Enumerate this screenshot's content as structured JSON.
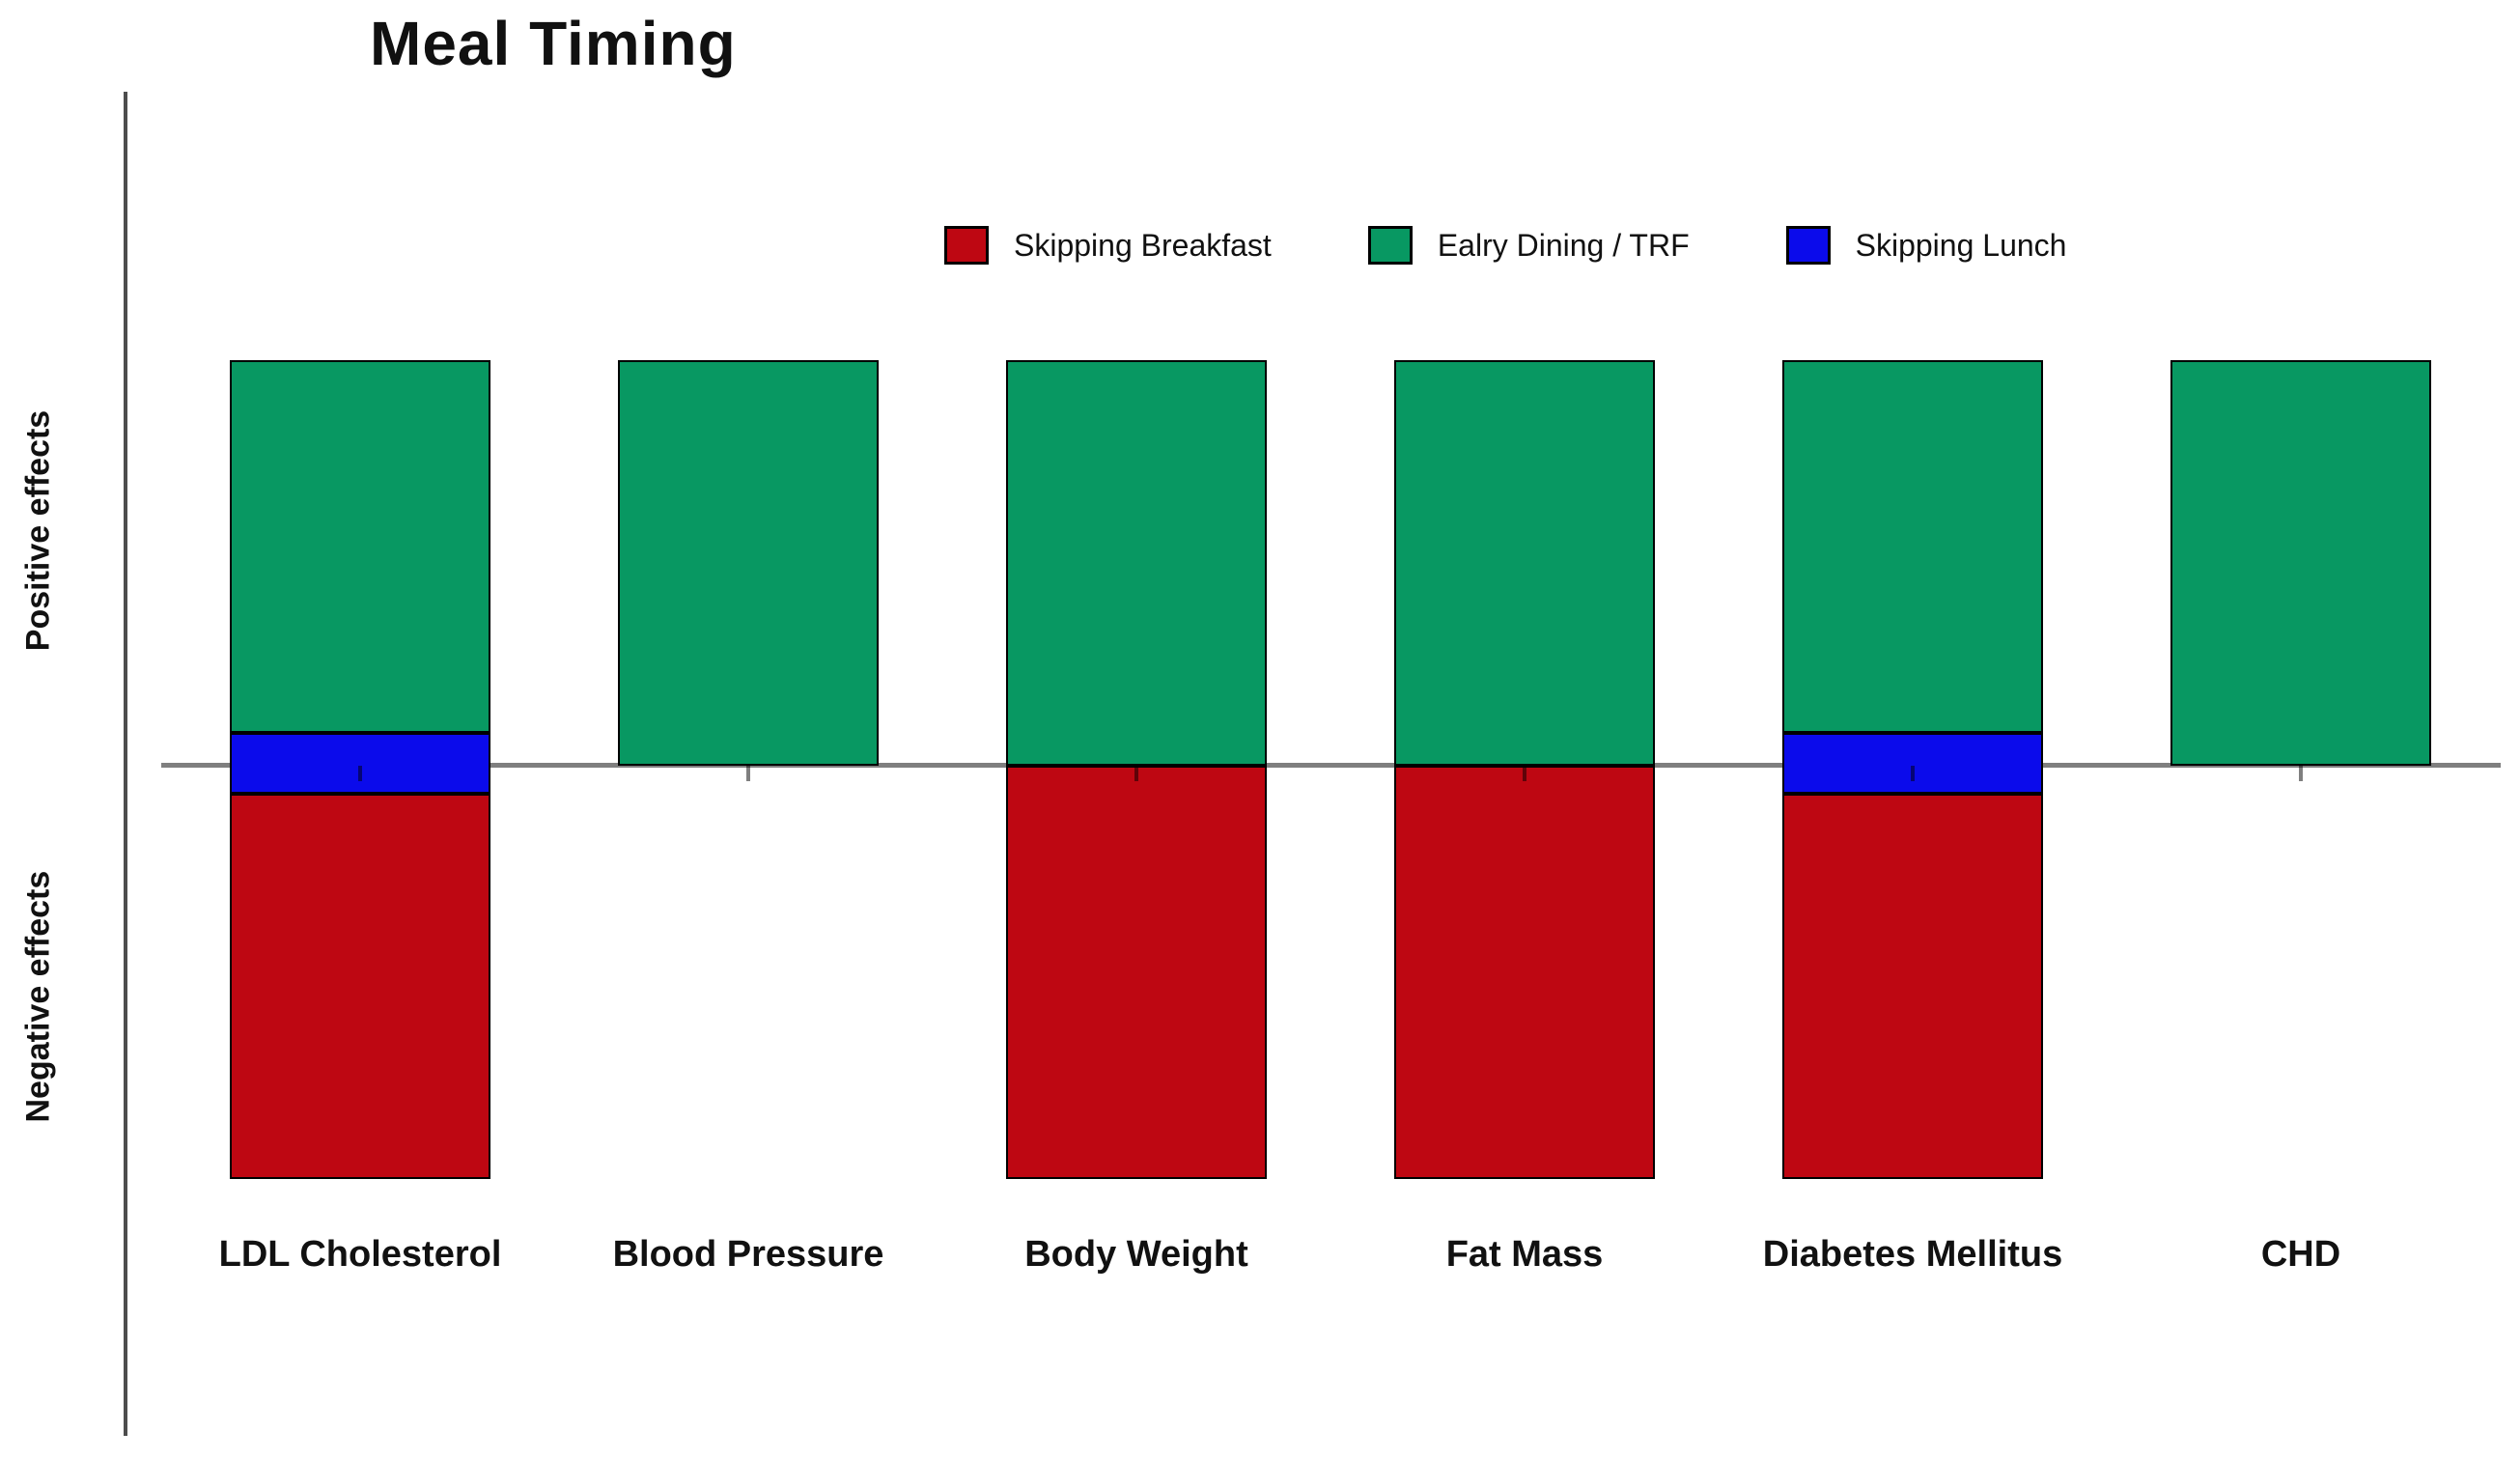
{
  "chart_data": {
    "type": "bar",
    "subtype": "diverging-stacked-bar",
    "title": "Meal Timing",
    "y_axis": {
      "positive_label": "Positive effects",
      "negative_label": "Negative effects",
      "numeric_ticks_shown": false,
      "zero_line": true
    },
    "categories": [
      "LDL Cholesterol",
      "Blood Pressure",
      "Body Weight",
      "Fat Mass",
      "Diabetes Mellitus",
      "CHD"
    ],
    "series": [
      {
        "name": "Skipping Breakfast",
        "color": "#BE0712",
        "segments": [
          [
            -10.2,
            -0.7
          ],
          null,
          [
            -10.2,
            0
          ],
          [
            -10.2,
            0
          ],
          [
            -10.2,
            -0.7
          ],
          null
        ]
      },
      {
        "name": "Ealry Dining / TRF",
        "color": "#089862",
        "segments": [
          [
            0.8,
            10
          ],
          [
            0,
            10
          ],
          [
            0,
            10
          ],
          [
            0,
            10
          ],
          [
            0.8,
            10
          ],
          [
            0,
            10
          ]
        ]
      },
      {
        "name": "Skipping Lunch",
        "color": "#0B0BEB",
        "segments": [
          [
            -0.7,
            0.8
          ],
          null,
          null,
          null,
          [
            -0.7,
            0.8
          ],
          null
        ]
      }
    ],
    "ylim": [
      -12,
      12
    ],
    "grid": false,
    "legend_position": "top-center",
    "category_ticks_below_axis": true
  }
}
